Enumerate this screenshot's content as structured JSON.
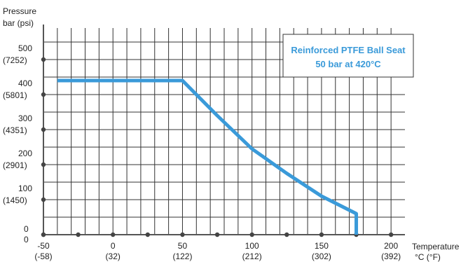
{
  "chart_data": {
    "type": "line",
    "title": "",
    "ylabel_line1": "Pressure",
    "ylabel_line2": "bar (psi)",
    "xlabel_line1": "Temperature",
    "xlabel_line2": "°C (°F)",
    "x_ticks": [
      {
        "value": -50,
        "label": "-50",
        "sub": "(-58)"
      },
      {
        "value": 0,
        "label": "0",
        "sub": "(32)"
      },
      {
        "value": 50,
        "label": "50",
        "sub": "(122)"
      },
      {
        "value": 100,
        "label": "100",
        "sub": "(212)"
      },
      {
        "value": 150,
        "label": "150",
        "sub": "(302)"
      },
      {
        "value": 200,
        "label": "200",
        "sub": "(392)"
      }
    ],
    "x_origin_label": "0",
    "y_ticks": [
      {
        "value": 0,
        "label": "0",
        "sub": ""
      },
      {
        "value": 100,
        "label": "100",
        "sub": "(1450)"
      },
      {
        "value": 200,
        "label": "200",
        "sub": "(2901)"
      },
      {
        "value": 300,
        "label": "300",
        "sub": "(4351)"
      },
      {
        "value": 400,
        "label": "400",
        "sub": "(5801)"
      },
      {
        "value": 500,
        "label": "500",
        "sub": "(7252)"
      }
    ],
    "xlim": [
      -50,
      210
    ],
    "ylim": [
      0,
      600
    ],
    "grid": true,
    "series": [
      {
        "x": [
          -40,
          50,
          75,
          100,
          125,
          150,
          175,
          175
        ],
        "y": [
          440,
          440,
          340,
          245,
          175,
          110,
          60,
          0
        ]
      }
    ],
    "legend": {
      "line1": "Reinforced PTFE Ball Seat",
      "line2": "50 bar at 420°C",
      "placement": "top-right"
    },
    "colors": {
      "series": "#3a9ad9",
      "grid": "#333333",
      "axis": "#555555",
      "legend_text": "#3a9ad9",
      "legend_border": "#333333"
    }
  }
}
